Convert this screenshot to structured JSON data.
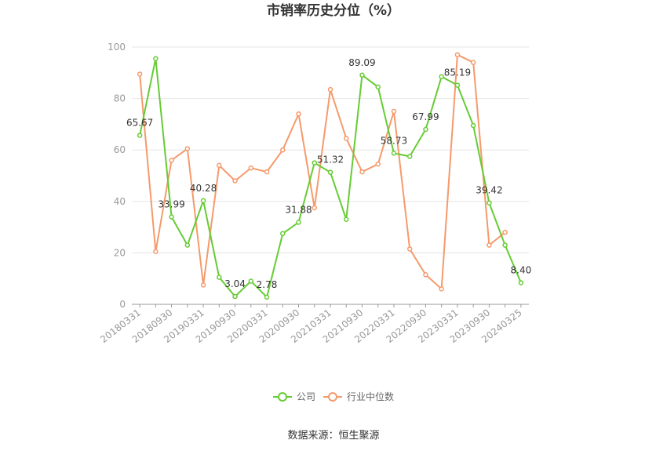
{
  "chart_data": {
    "type": "line",
    "title": "市销率历史分位（%）",
    "source": "数据来源：恒生聚源",
    "ylim": [
      0,
      100
    ],
    "yticks": [
      0,
      20,
      40,
      60,
      80,
      100
    ],
    "grid": true,
    "legend_position": "bottom",
    "x": [
      "20180331",
      "20180630",
      "20180930",
      "20181231",
      "20190331",
      "20190630",
      "20190930",
      "20191231",
      "20200331",
      "20200630",
      "20200930",
      "20201231",
      "20210331",
      "20210630",
      "20210930",
      "20211231",
      "20220331",
      "20220630",
      "20220930",
      "20221231",
      "20230331",
      "20230630",
      "20230930",
      "20231231",
      "20240325"
    ],
    "x_tick_labels": [
      "20180331",
      "20180930",
      "20190331",
      "20190930",
      "20200331",
      "20200930",
      "20210331",
      "20210930",
      "20220331",
      "20220930",
      "20230331",
      "20230930",
      "20240325"
    ],
    "series": [
      {
        "name": "公司",
        "color": "#66cc33",
        "values": [
          65.67,
          95.5,
          33.99,
          23.0,
          40.28,
          10.5,
          3.04,
          9.0,
          2.78,
          27.5,
          31.88,
          55.0,
          51.32,
          33.0,
          89.09,
          84.5,
          58.73,
          57.5,
          67.99,
          88.5,
          85.19,
          69.5,
          39.42,
          23.0,
          8.4
        ],
        "labels": {
          "0": "65.67",
          "2": "33.99",
          "4": "40.28",
          "6": "3.04",
          "8": "2.78",
          "10": "31.88",
          "12": "51.32",
          "14": "89.09",
          "16": "58.73",
          "18": "67.99",
          "20": "85.19",
          "22": "39.42",
          "24": "8.40"
        }
      },
      {
        "name": "行业中位数",
        "color": "#f59a6b",
        "values": [
          89.5,
          20.5,
          56.0,
          60.5,
          7.5,
          54.0,
          48.0,
          53.0,
          51.5,
          60.0,
          74.0,
          37.5,
          83.5,
          64.5,
          51.5,
          54.5,
          75.0,
          21.5,
          11.5,
          6.0,
          97.0,
          94.0,
          23.0,
          28.0,
          null
        ]
      }
    ]
  }
}
